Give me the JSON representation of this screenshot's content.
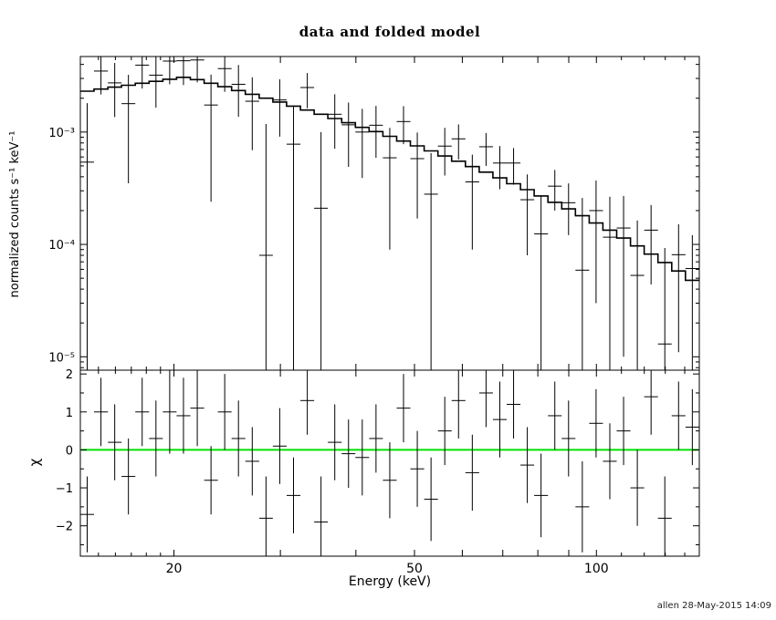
{
  "footer": {
    "timestamp": "allen 28-May-2015 14:09"
  },
  "chart_data": {
    "type": "scatter",
    "title": "data and folded model",
    "xlabel": "Energy (keV)",
    "xscale": "log",
    "xlim": [
      14,
      148
    ],
    "grid": false,
    "legend": "none",
    "colors": {
      "data": "#000000",
      "model": "#000000",
      "zero_line": "#00e100"
    },
    "xticks": {
      "labeled": [
        {
          "v": 20,
          "label": "20"
        },
        {
          "v": 50,
          "label": "50"
        },
        {
          "v": 100,
          "label": "100"
        }
      ],
      "major": [
        20,
        30,
        40,
        50,
        60,
        70,
        80,
        90,
        100
      ],
      "minor": [
        15,
        16,
        17,
        18,
        19,
        110,
        120,
        130,
        140
      ]
    },
    "bin_edges_kev": [
      14.0,
      14.75,
      15.55,
      16.38,
      17.26,
      18.19,
      19.17,
      20.2,
      21.29,
      22.44,
      23.64,
      24.91,
      26.25,
      27.67,
      29.15,
      30.72,
      32.38,
      34.12,
      35.95,
      37.89,
      39.92,
      42.07,
      44.33,
      46.72,
      49.23,
      51.88,
      54.67,
      57.61,
      60.71,
      63.98,
      67.42,
      71.05,
      74.87,
      78.89,
      83.14,
      87.61,
      92.32,
      97.29,
      102.52,
      108.04,
      113.85,
      119.97,
      126.42,
      133.22,
      140.39,
      147.94
    ],
    "top_panel": {
      "ylabel": "normalized counts s⁻¹ keV⁻¹",
      "yscale": "log",
      "ylim": [
        7.6e-06,
        0.0047
      ],
      "yticks_labeled": [
        {
          "v": 0.001,
          "label": "10⁻³"
        },
        {
          "v": 0.0001,
          "label": "10⁻⁴"
        },
        {
          "v": 1e-05,
          "label": "10⁻⁵"
        }
      ],
      "yticks_minor": [
        0.004,
        0.003,
        0.002,
        0.0009,
        0.0008,
        0.0007,
        0.0006,
        0.0005,
        0.0004,
        0.0003,
        0.0002,
        9e-05,
        8e-05,
        7e-05,
        6e-05,
        5e-05,
        4e-05,
        3e-05,
        2e-05,
        9e-06,
        8e-06
      ],
      "model_values": [
        0.00231,
        0.00241,
        0.00251,
        0.00261,
        0.00272,
        0.00283,
        0.00295,
        0.00307,
        0.00293,
        0.00272,
        0.00253,
        0.00234,
        0.00217,
        0.002,
        0.00185,
        0.0017,
        0.00157,
        0.00144,
        0.00132,
        0.00121,
        0.0011,
        0.00101,
        0.000916,
        0.000832,
        0.000753,
        0.00068,
        0.000612,
        0.00055,
        0.000493,
        0.00044,
        0.000391,
        0.000347,
        0.000307,
        0.00027,
        0.000237,
        0.000207,
        0.00018,
        0.000155,
        0.000134,
        0.000114,
        9.7e-05,
        8.2e-05,
        6.9e-05,
        5.8e-05,
        4.8e-05
      ],
      "data_y": [
        0.00054,
        0.00349,
        0.00274,
        0.00179,
        0.00394,
        0.00321,
        0.00428,
        0.00431,
        0.00438,
        0.00174,
        0.00367,
        0.00266,
        0.00188,
        8e-05,
        0.00193,
        0.00078,
        0.00249,
        0.00021,
        0.00144,
        0.00116,
        0.001,
        0.00115,
        0.00059,
        0.00124,
        0.00058,
        0.00028,
        0.00075,
        0.00087,
        0.00036,
        0.00074,
        0.00053,
        0.00053,
        0.00025,
        0.000124,
        0.00033,
        0.000235,
        5.9e-05,
        0.0002,
        0.000116,
        0.00014,
        5.3e-05,
        0.000134,
        1.3e-05,
        8.1e-05,
        6.1e-05
      ],
      "data_yerr": [
        0.00127,
        0.00133,
        0.00138,
        0.00144,
        0.0015,
        0.00156,
        0.00162,
        0.00169,
        0.00161,
        0.0015,
        0.00139,
        0.00129,
        0.00119,
        0.0011,
        0.00102,
        0.00094,
        0.00086,
        0.00079,
        0.00073,
        0.00067,
        0.00061,
        0.00056,
        0.0005,
        0.00046,
        0.00041,
        0.00037,
        0.00034,
        0.0003,
        0.00027,
        0.00024,
        0.00022,
        0.00019,
        0.00017,
        0.00015,
        0.00013,
        0.000114,
        0.0002,
        0.00017,
        0.00015,
        0.00013,
        0.00011,
        9e-05,
        8e-05,
        7e-05,
        6e-05
      ]
    },
    "bottom_panel": {
      "ylabel": "χ",
      "yscale": "linear",
      "ylim": [
        -2.8,
        2.1
      ],
      "yticks_labeled": [
        {
          "v": 2,
          "label": "2"
        },
        {
          "v": 1,
          "label": "1"
        },
        {
          "v": 0,
          "label": "0"
        },
        {
          "v": -1,
          "label": "−1"
        },
        {
          "v": -2,
          "label": "−2"
        }
      ],
      "yticks_minor": [
        -2.5,
        -1.5,
        -0.5,
        0.5,
        1.5
      ],
      "zero_line": 0,
      "chi": [
        -1.7,
        1.0,
        0.2,
        -0.7,
        1.0,
        0.3,
        1.0,
        0.9,
        1.1,
        -0.8,
        1.0,
        0.3,
        -0.3,
        -1.8,
        0.1,
        -1.2,
        1.3,
        -1.9,
        0.2,
        -0.1,
        -0.2,
        0.3,
        -0.8,
        1.1,
        -0.5,
        -1.3,
        0.5,
        1.3,
        -0.6,
        1.5,
        0.8,
        1.2,
        -0.4,
        -1.2,
        0.9,
        0.3,
        -1.5,
        0.7,
        -0.3,
        0.5,
        -1.0,
        1.4,
        -1.8,
        0.9,
        0.6
      ],
      "chi_err": [
        1.0,
        0.9,
        1.0,
        1.0,
        0.9,
        1.0,
        1.1,
        1.0,
        1.0,
        0.9,
        1.0,
        1.0,
        0.9,
        1.1,
        1.0,
        1.0,
        0.9,
        1.2,
        1.0,
        0.9,
        1.0,
        0.9,
        1.0,
        0.9,
        1.0,
        1.1,
        0.9,
        1.0,
        1.0,
        0.9,
        1.0,
        0.9,
        1.0,
        1.1,
        0.9,
        1.0,
        1.2,
        0.9,
        1.0,
        0.9,
        1.0,
        1.0,
        1.1,
        0.9,
        1.0
      ]
    }
  }
}
